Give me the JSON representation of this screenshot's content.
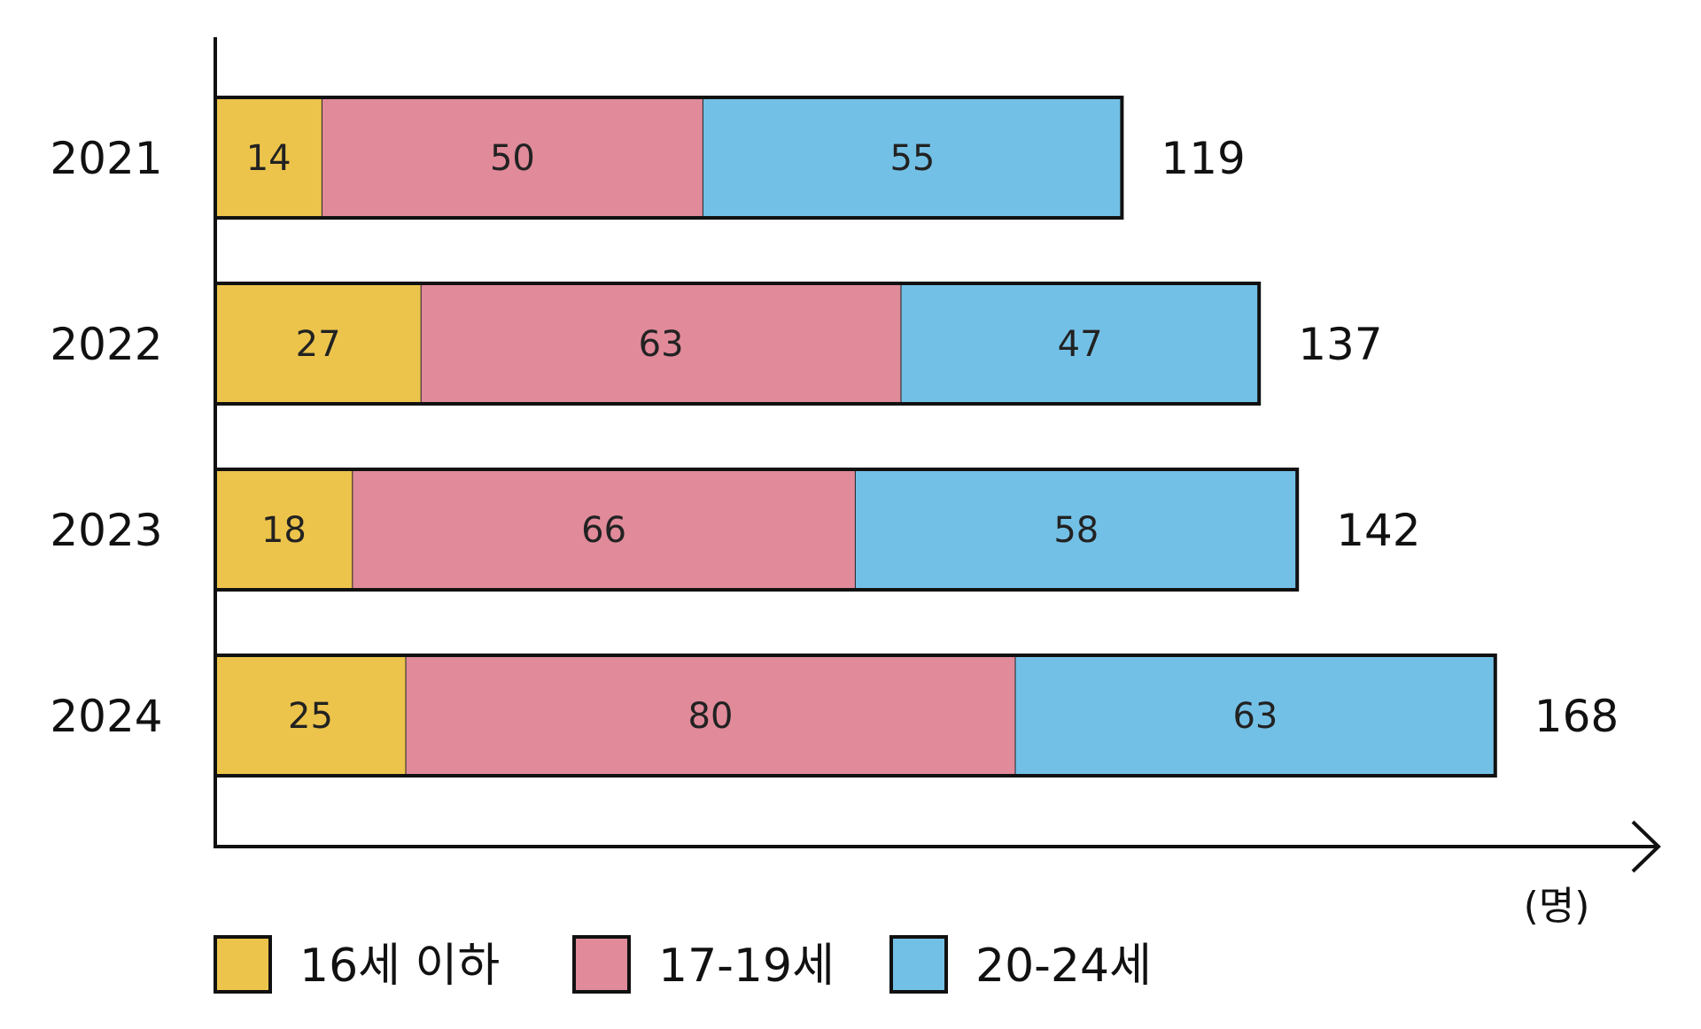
{
  "chart_data": {
    "type": "bar",
    "orientation": "horizontal",
    "stacked": true,
    "categories": [
      "2021",
      "2022",
      "2023",
      "2024"
    ],
    "series": [
      {
        "name": "16세 이하",
        "color": "#ecc44b",
        "values": [
          14,
          27,
          18,
          25
        ]
      },
      {
        "name": "17-19세",
        "color": "#e08a9a",
        "values": [
          50,
          63,
          66,
          80
        ]
      },
      {
        "name": "20-24세",
        "color": "#73c0e6",
        "values": [
          55,
          47,
          58,
          63
        ]
      }
    ],
    "totals": [
      "119",
      "137",
      "142",
      "168"
    ],
    "unit_label": "(명)",
    "xlim": [
      0,
      188
    ],
    "grid": false,
    "legend_position": "bottom"
  }
}
